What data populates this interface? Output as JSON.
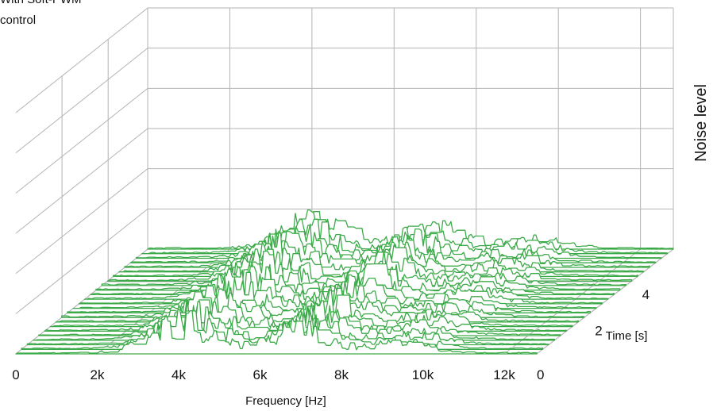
{
  "chart_data": {
    "type": "waterfall-3d",
    "annotation": [
      "With Soft-PWM",
      "control"
    ],
    "xlabel": "Frequency [Hz]",
    "x_ticks": [
      "0",
      "2k",
      "4k",
      "6k",
      "8k",
      "10k",
      "12k"
    ],
    "x_range": [
      0,
      12800
    ],
    "zlabel": "Time [s]",
    "z_ticks": [
      "0",
      "2",
      "4"
    ],
    "z_range": [
      0,
      5.8
    ],
    "ylabel": "Noise level",
    "y_gridlines": 5,
    "n_traces": 24,
    "line_color": "#3daa4a",
    "grid_color": "#b3b3b3",
    "features": [
      {
        "frequency": 4100,
        "level": 0.35,
        "desc": "broad hump"
      },
      {
        "frequency": 6900,
        "level": 0.28,
        "desc": "peak region"
      },
      {
        "frequency": 9300,
        "level": 0.12,
        "desc": "minor bump"
      }
    ]
  }
}
